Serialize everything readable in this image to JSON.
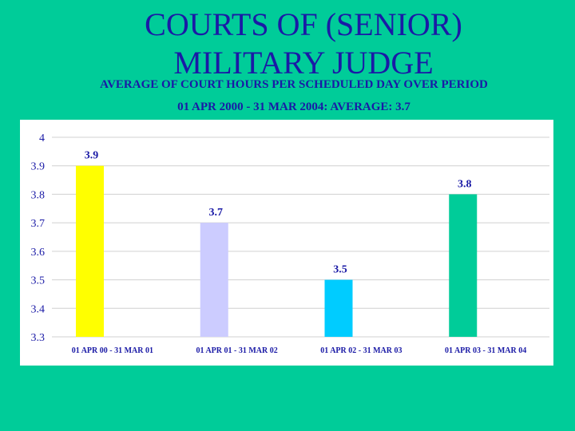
{
  "slide": {
    "title_line1": "COURTS OF (SENIOR)",
    "title_line2": "MILITARY JUDGE",
    "subtitle_line1": "AVERAGE OF COURT HOURS PER SCHEDULED DAY OVER PERIOD",
    "subtitle_line2": "01 APR 2000 - 31 MAR 2004: AVERAGE:  3.7"
  },
  "chart_data": {
    "type": "bar",
    "categories": [
      "01 APR 00 - 31 MAR 01",
      "01 APR 01 - 31 MAR 02",
      "01 APR 02 - 31 MAR 03",
      "01 APR 03 - 31 MAR 04"
    ],
    "values": [
      3.9,
      3.7,
      3.5,
      3.8
    ],
    "data_labels": [
      "3.9",
      "3.7",
      "3.5",
      "3.8"
    ],
    "bar_colors": [
      "#ffff00",
      "#ccccff",
      "#00ccff",
      "#00cc99"
    ],
    "ylim": [
      3.3,
      4
    ],
    "yticks": [
      "3.3",
      "3.4",
      "3.5",
      "3.6",
      "3.7",
      "3.8",
      "3.9",
      "4"
    ],
    "grid": true,
    "legend": false
  }
}
